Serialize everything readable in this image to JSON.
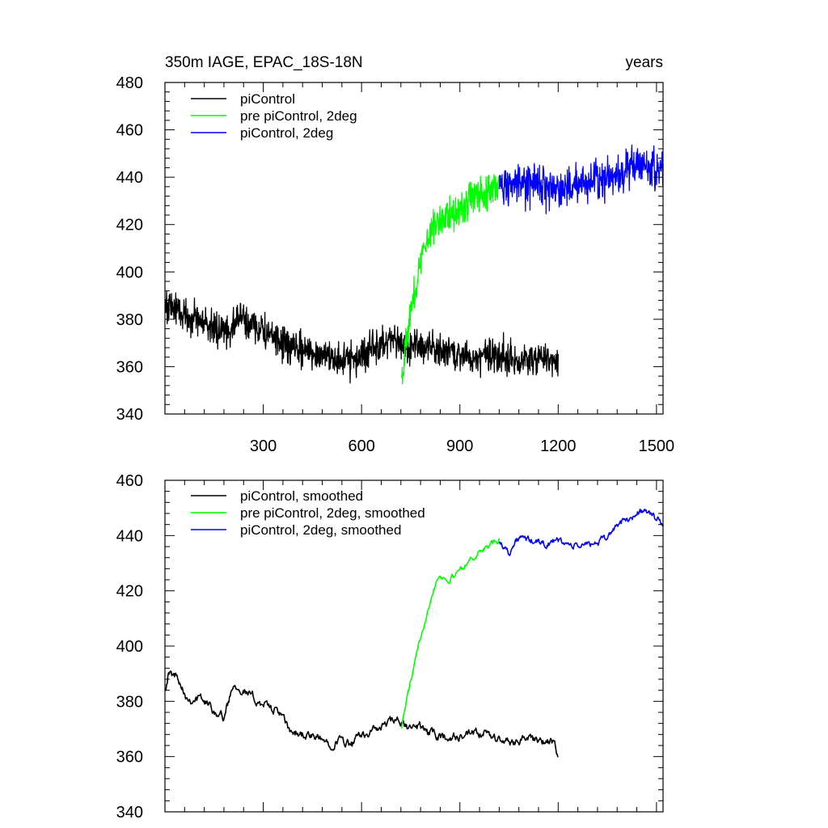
{
  "chart_data": [
    {
      "type": "line",
      "title": "350m IAGE, EPAC_18S-18N",
      "title_right": "years",
      "xlim": [
        0,
        1520
      ],
      "ylim": [
        340,
        480
      ],
      "xticks": [
        300,
        600,
        900,
        1200,
        1500
      ],
      "yticks": [
        340,
        360,
        380,
        400,
        420,
        440,
        460,
        480
      ],
      "x_tick_labels_shown": true,
      "legend_position": "top-left",
      "grid": false,
      "series": [
        {
          "name": "piControl",
          "color": "#000000",
          "smoothed": false,
          "x_range": [
            1,
            1200
          ],
          "anchors": [
            [
              1,
              386
            ],
            [
              30,
              385
            ],
            [
              60,
              382
            ],
            [
              100,
              380
            ],
            [
              150,
              376
            ],
            [
              200,
              375
            ],
            [
              220,
              381
            ],
            [
              260,
              378
            ],
            [
              300,
              375
            ],
            [
              350,
              370
            ],
            [
              400,
              367
            ],
            [
              450,
              366
            ],
            [
              500,
              365
            ],
            [
              550,
              362
            ],
            [
              580,
              363
            ],
            [
              620,
              367
            ],
            [
              660,
              369
            ],
            [
              700,
              370
            ],
            [
              730,
              368
            ],
            [
              760,
              369
            ],
            [
              800,
              369
            ],
            [
              850,
              366
            ],
            [
              900,
              365
            ],
            [
              950,
              364
            ],
            [
              1000,
              366
            ],
            [
              1050,
              364
            ],
            [
              1100,
              363
            ],
            [
              1150,
              365
            ],
            [
              1190,
              363
            ],
            [
              1200,
              360
            ]
          ],
          "noise": 6
        },
        {
          "name": "pre piControl, 2deg",
          "color": "#00ff00",
          "smoothed": false,
          "x_range": [
            722,
            1020
          ],
          "anchors": [
            [
              722,
              356
            ],
            [
              740,
              375
            ],
            [
              760,
              390
            ],
            [
              780,
              404
            ],
            [
              800,
              414
            ],
            [
              820,
              420
            ],
            [
              850,
              423
            ],
            [
              880,
              425
            ],
            [
              920,
              429
            ],
            [
              960,
              433
            ],
            [
              1000,
              436
            ],
            [
              1020,
              437
            ]
          ],
          "noise": 6
        },
        {
          "name": "piControl, 2deg",
          "color": "#0000ff",
          "smoothed": false,
          "x_range": [
            1020,
            1520
          ],
          "anchors": [
            [
              1020,
              437
            ],
            [
              1100,
              436
            ],
            [
              1150,
              437
            ],
            [
              1200,
              435
            ],
            [
              1250,
              436
            ],
            [
              1300,
              439
            ],
            [
              1350,
              440
            ],
            [
              1400,
              443
            ],
            [
              1450,
              446
            ],
            [
              1480,
              444
            ],
            [
              1520,
              443
            ]
          ],
          "noise": 7
        }
      ]
    },
    {
      "type": "line",
      "xlim": [
        0,
        1520
      ],
      "ylim": [
        340,
        460
      ],
      "xticks": [
        300,
        600,
        900,
        1200,
        1500
      ],
      "yticks": [
        340,
        360,
        380,
        400,
        420,
        440,
        460
      ],
      "x_tick_labels_shown": false,
      "legend_position": "top-left",
      "grid": false,
      "series": [
        {
          "name": "piControl, smoothed",
          "color": "#000000",
          "smoothed": true,
          "x_range": [
            1,
            1200
          ],
          "anchors": [
            [
              1,
              385
            ],
            [
              10,
              390
            ],
            [
              40,
              389
            ],
            [
              70,
              381
            ],
            [
              110,
              381
            ],
            [
              150,
              377
            ],
            [
              180,
              374
            ],
            [
              210,
              387
            ],
            [
              240,
              384
            ],
            [
              270,
              381
            ],
            [
              300,
              379
            ],
            [
              350,
              376
            ],
            [
              380,
              369
            ],
            [
              420,
              368
            ],
            [
              450,
              367
            ],
            [
              500,
              365
            ],
            [
              540,
              366
            ],
            [
              570,
              364
            ],
            [
              600,
              368
            ],
            [
              650,
              370
            ],
            [
              700,
              373
            ],
            [
              720,
              372
            ],
            [
              750,
              370
            ],
            [
              780,
              371
            ],
            [
              800,
              369
            ],
            [
              850,
              367
            ],
            [
              900,
              367
            ],
            [
              950,
              368
            ],
            [
              980,
              368
            ],
            [
              1000,
              367
            ],
            [
              1050,
              365
            ],
            [
              1100,
              367
            ],
            [
              1150,
              365
            ],
            [
              1190,
              365
            ],
            [
              1200,
              358
            ]
          ],
          "noise": 2.5
        },
        {
          "name": "pre piControl, 2deg, smoothed",
          "color": "#00ff00",
          "smoothed": true,
          "x_range": [
            722,
            1020
          ],
          "anchors": [
            [
              722,
              371
            ],
            [
              740,
              382
            ],
            [
              760,
              392
            ],
            [
              780,
              403
            ],
            [
              800,
              413
            ],
            [
              820,
              421
            ],
            [
              835,
              426
            ],
            [
              860,
              424
            ],
            [
              880,
              425
            ],
            [
              900,
              428
            ],
            [
              940,
              432
            ],
            [
              980,
              436
            ],
            [
              1020,
              438
            ]
          ],
          "noise": 1.8
        },
        {
          "name": "piControl, 2deg, smoothed",
          "color": "#0000ff",
          "smoothed": true,
          "x_range": [
            1020,
            1520
          ],
          "anchors": [
            [
              1020,
              438
            ],
            [
              1050,
              434
            ],
            [
              1080,
              439
            ],
            [
              1120,
              438
            ],
            [
              1160,
              437
            ],
            [
              1200,
              438
            ],
            [
              1250,
              436
            ],
            [
              1300,
              437
            ],
            [
              1340,
              438
            ],
            [
              1380,
              444
            ],
            [
              1420,
              446
            ],
            [
              1450,
              449
            ],
            [
              1480,
              448
            ],
            [
              1520,
              444
            ]
          ],
          "noise": 2
        }
      ]
    }
  ]
}
